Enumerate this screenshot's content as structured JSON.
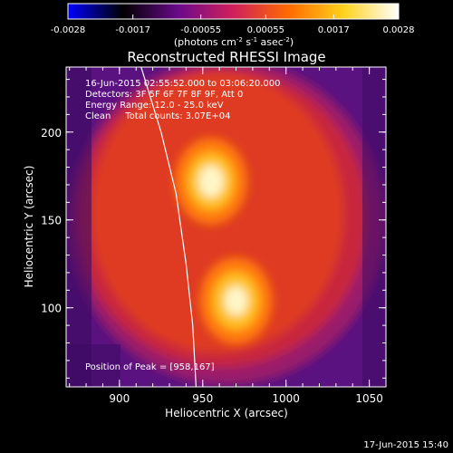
{
  "chart_data": {
    "type": "heatmap",
    "title": "Reconstructed RHESSI Image",
    "xlabel": "Heliocentric X (arcsec)",
    "ylabel": "Heliocentric Y (arcsec)",
    "xlim": [
      868,
      1060
    ],
    "ylim": [
      55,
      237
    ],
    "x_ticks": [
      900,
      950,
      1000,
      1050
    ],
    "y_ticks": [
      100,
      150,
      200
    ],
    "colorbar": {
      "ticks": [
        "-0.0028",
        "-0.0017",
        "-0.00055",
        "0.00055",
        "0.0017",
        "0.0028"
      ],
      "range": [
        -0.0028,
        0.0028
      ],
      "unit_label": "(photons cm",
      "unit_exp1": "-2",
      "unit_mid": " s",
      "unit_exp2": "-1",
      "unit_end": " asec",
      "unit_exp3": "-2",
      "unit_close": ")",
      "colormap": [
        "#0000ff",
        "#000000",
        "#6a0a8a",
        "#d0205a",
        "#ff6a00",
        "#ffd21e",
        "#ffffff"
      ]
    },
    "sources": [
      {
        "x": 955,
        "y": 172,
        "peak": 1.0
      },
      {
        "x": 970,
        "y": 104,
        "peak": 0.92
      }
    ],
    "peak_position": [
      958,
      167
    ],
    "limb": [
      [
        913,
        237
      ],
      [
        925,
        200
      ],
      [
        934,
        165
      ],
      [
        940,
        125
      ],
      [
        944,
        90
      ],
      [
        946,
        55
      ]
    ]
  },
  "annotations": {
    "time_range": "16-Jun-2015 02:55:52.000 to 03:06:20.000",
    "detectors": "Detectors: 3F 5F 6F 7F 8F 9F, Att 0",
    "energy": "Energy Range: 12.0 - 25.0 keV",
    "method": "Clean     Total counts: 3.07E+04",
    "peak": "Position of Peak = [958,167]"
  },
  "footer_timestamp": "17-Jun-2015 15:40"
}
